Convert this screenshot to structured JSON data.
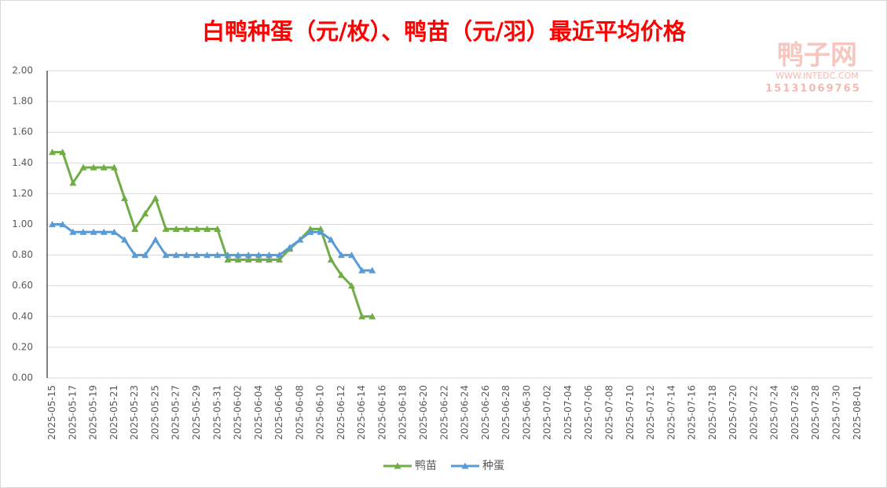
{
  "chart_data": {
    "type": "line",
    "title": "白鸭种蛋（元/枚）、鸭苗（元/羽）最近平均价格",
    "watermark": [
      "鸭子网",
      "WWW.INTEDC.COM",
      "15131069765"
    ],
    "categories": [
      "2025-05-15",
      null,
      "2025-05-17",
      null,
      "2025-05-19",
      null,
      "2025-05-21",
      null,
      "2025-05-23",
      null,
      "2025-05-25",
      null,
      "2025-05-27",
      null,
      "2025-05-29",
      null,
      "2025-05-31",
      null,
      "2025-06-02",
      null,
      "2025-06-04",
      null,
      "2025-06-06",
      null,
      "2025-06-08",
      null,
      "2025-06-10",
      null,
      "2025-06-12",
      null,
      "2025-06-14",
      null,
      "2025-06-16",
      null,
      "2025-06-18",
      null,
      "2025-06-20",
      null,
      "2025-06-22",
      null,
      "2025-06-24",
      null,
      "2025-06-26",
      null,
      "2025-06-28",
      null,
      "2025-06-30",
      null,
      "2025-07-02",
      null,
      "2025-07-04",
      null,
      "2025-07-06",
      null,
      "2025-07-08",
      null,
      "2025-07-10",
      null,
      "2025-07-12",
      null,
      "2025-07-14",
      null,
      "2025-07-16",
      null,
      "2025-07-18",
      null,
      "2025-07-20",
      null,
      "2025-07-22",
      null,
      "2025-07-24",
      null,
      "2025-07-26",
      null,
      "2025-07-28",
      null,
      "2025-07-30",
      null,
      "2025-08-01",
      null
    ],
    "series": [
      {
        "name": "鸭苗",
        "color": "#70ad47",
        "values": [
          1.47,
          1.47,
          1.27,
          1.37,
          1.37,
          1.37,
          1.37,
          1.17,
          0.97,
          1.07,
          1.17,
          0.97,
          0.97,
          0.97,
          0.97,
          0.97,
          0.97,
          0.77,
          0.77,
          0.77,
          0.77,
          0.77,
          0.77,
          0.84,
          0.9,
          0.97,
          0.97,
          0.77,
          0.67,
          0.6,
          0.4,
          0.4,
          null,
          null,
          null,
          null,
          null,
          null,
          null,
          null,
          null,
          null,
          null,
          null,
          null,
          null,
          null,
          null,
          null,
          null,
          null,
          null,
          null,
          null,
          null,
          null,
          null,
          null,
          null,
          null,
          null,
          null,
          null,
          null,
          null,
          null,
          null,
          null,
          null,
          null,
          null,
          null,
          null,
          null,
          null,
          null,
          null,
          null,
          null,
          null
        ]
      },
      {
        "name": "种蛋",
        "color": "#5b9bd5",
        "values": [
          1.0,
          1.0,
          0.95,
          0.95,
          0.95,
          0.95,
          0.95,
          0.9,
          0.8,
          0.8,
          0.9,
          0.8,
          0.8,
          0.8,
          0.8,
          0.8,
          0.8,
          0.8,
          0.8,
          0.8,
          0.8,
          0.8,
          0.8,
          0.85,
          0.9,
          0.95,
          0.95,
          0.9,
          0.8,
          0.8,
          0.7,
          0.7,
          null,
          null,
          null,
          null,
          null,
          null,
          null,
          null,
          null,
          null,
          null,
          null,
          null,
          null,
          null,
          null,
          null,
          null,
          null,
          null,
          null,
          null,
          null,
          null,
          null,
          null,
          null,
          null,
          null,
          null,
          null,
          null,
          null,
          null,
          null,
          null,
          null,
          null,
          null,
          null,
          null,
          null,
          null,
          null,
          null,
          null,
          null,
          null
        ]
      }
    ],
    "ylim": [
      0,
      2
    ],
    "yticks": [
      {
        "value": 0,
        "label": "0.00"
      },
      {
        "value": 0.2,
        "label": "0.20"
      },
      {
        "value": 0.4,
        "label": "0.40"
      },
      {
        "value": 0.6,
        "label": "0.60"
      },
      {
        "value": 0.8,
        "label": "0.80"
      },
      {
        "value": 1,
        "label": "1.00"
      },
      {
        "value": 1.2,
        "label": "1.20"
      },
      {
        "value": 1.4,
        "label": "1.40"
      },
      {
        "value": 1.6,
        "label": "1.60"
      },
      {
        "value": 1.8,
        "label": "1.80"
      },
      {
        "value": 2,
        "label": "2.00"
      }
    ],
    "grid": true,
    "legend": "bottom"
  }
}
